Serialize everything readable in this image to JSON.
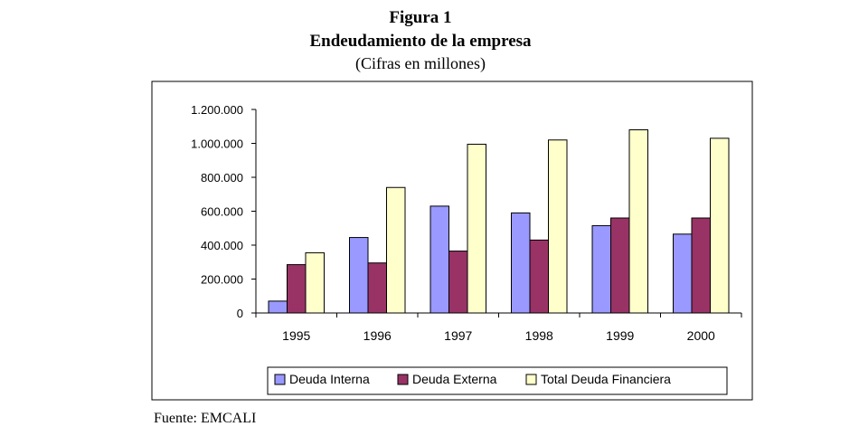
{
  "figure": {
    "label": "Figura 1",
    "title": "Endeudamiento de la empresa",
    "subtitle": "(Cifras en millones)",
    "source": "Fuente: EMCALI"
  },
  "chart_data": {
    "type": "bar",
    "title": "Endeudamiento de la empresa",
    "subtitle": "(Cifras en millones)",
    "xlabel": "",
    "ylabel": "",
    "categories": [
      "1995",
      "1996",
      "1997",
      "1998",
      "1999",
      "2000"
    ],
    "series": [
      {
        "name": "Deuda Interna",
        "color": "#9999ff",
        "values": [
          70000,
          445000,
          630000,
          590000,
          515000,
          465000
        ]
      },
      {
        "name": "Deuda Externa",
        "color": "#993366",
        "values": [
          285000,
          295000,
          365000,
          430000,
          560000,
          560000
        ]
      },
      {
        "name": "Total Deuda Financiera",
        "color": "#ffffcc",
        "values": [
          355000,
          740000,
          995000,
          1020000,
          1080000,
          1030000
        ]
      }
    ],
    "ylim": [
      0,
      1200000
    ],
    "yticks": [
      {
        "value": 0,
        "label": "0"
      },
      {
        "value": 200000,
        "label": "200.000"
      },
      {
        "value": 400000,
        "label": "400.000"
      },
      {
        "value": 600000,
        "label": "600.000"
      },
      {
        "value": 800000,
        "label": "800.000"
      },
      {
        "value": 1000000,
        "label": "1.000.000"
      },
      {
        "value": 1200000,
        "label": "1.200.000"
      }
    ],
    "grid": false,
    "legend_position": "bottom"
  }
}
